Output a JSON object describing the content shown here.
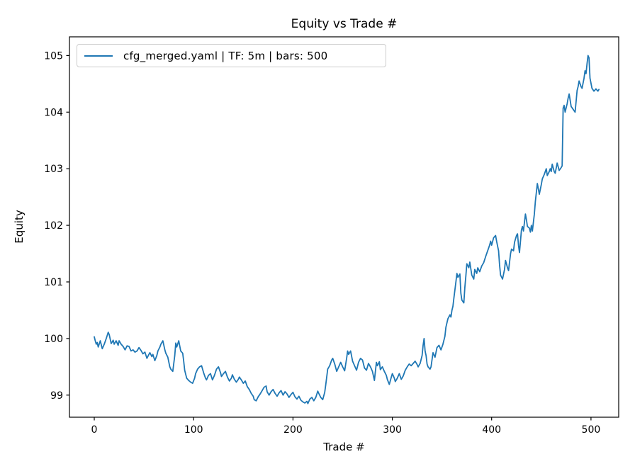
{
  "title": "Equity vs Trade #",
  "legend": {
    "label": "cfg_merged.yaml | TF: 5m | bars: 500",
    "position": "upper left"
  },
  "chart_data": {
    "type": "line",
    "title": "Equity vs Trade #",
    "xlabel": "Trade #",
    "ylabel": "Equity",
    "grid": false,
    "legend_position": "upper left",
    "xticks": [
      0,
      100,
      200,
      300,
      400,
      500
    ],
    "yticks": [
      99,
      100,
      101,
      102,
      103,
      104,
      105
    ],
    "xlim": [
      -25,
      527.9
    ],
    "ylim": [
      98.61,
      105.33
    ],
    "series": [
      {
        "name": "cfg_merged.yaml | TF: 5m | bars: 500",
        "color": "#1f77b4",
        "points": [
          [
            0,
            100.03
          ],
          [
            1,
            99.96
          ],
          [
            2,
            99.9
          ],
          [
            3,
            99.93
          ],
          [
            4,
            99.85
          ],
          [
            6,
            99.96
          ],
          [
            7,
            99.89
          ],
          [
            8,
            99.82
          ],
          [
            10,
            99.9
          ],
          [
            12,
            100.0
          ],
          [
            14,
            100.11
          ],
          [
            15,
            100.07
          ],
          [
            17,
            99.91
          ],
          [
            19,
            99.97
          ],
          [
            20,
            99.9
          ],
          [
            22,
            99.96
          ],
          [
            24,
            99.88
          ],
          [
            25,
            99.96
          ],
          [
            27,
            99.9
          ],
          [
            29,
            99.86
          ],
          [
            31,
            99.8
          ],
          [
            33,
            99.87
          ],
          [
            35,
            99.86
          ],
          [
            37,
            99.78
          ],
          [
            39,
            99.8
          ],
          [
            41,
            99.76
          ],
          [
            43,
            99.78
          ],
          [
            45,
            99.84
          ],
          [
            47,
            99.79
          ],
          [
            49,
            99.73
          ],
          [
            51,
            99.76
          ],
          [
            53,
            99.65
          ],
          [
            55,
            99.72
          ],
          [
            56,
            99.75
          ],
          [
            58,
            99.68
          ],
          [
            59,
            99.72
          ],
          [
            61,
            99.61
          ],
          [
            63,
            99.7
          ],
          [
            64,
            99.78
          ],
          [
            66,
            99.85
          ],
          [
            67,
            99.9
          ],
          [
            69,
            99.96
          ],
          [
            71,
            99.8
          ],
          [
            72,
            99.74
          ],
          [
            74,
            99.67
          ],
          [
            76,
            99.5
          ],
          [
            77,
            99.46
          ],
          [
            79,
            99.42
          ],
          [
            81,
            99.7
          ],
          [
            82,
            99.92
          ],
          [
            83,
            99.85
          ],
          [
            85,
            99.96
          ],
          [
            87,
            99.78
          ],
          [
            89,
            99.74
          ],
          [
            90,
            99.6
          ],
          [
            91,
            99.44
          ],
          [
            93,
            99.3
          ],
          [
            95,
            99.26
          ],
          [
            97,
            99.23
          ],
          [
            99,
            99.21
          ],
          [
            101,
            99.3
          ],
          [
            102,
            99.38
          ],
          [
            104,
            99.46
          ],
          [
            106,
            99.5
          ],
          [
            108,
            99.52
          ],
          [
            110,
            99.4
          ],
          [
            112,
            99.3
          ],
          [
            113,
            99.27
          ],
          [
            115,
            99.35
          ],
          [
            117,
            99.38
          ],
          [
            119,
            99.27
          ],
          [
            121,
            99.35
          ],
          [
            123,
            99.46
          ],
          [
            125,
            99.5
          ],
          [
            127,
            99.4
          ],
          [
            128,
            99.33
          ],
          [
            130,
            99.38
          ],
          [
            132,
            99.42
          ],
          [
            134,
            99.32
          ],
          [
            136,
            99.25
          ],
          [
            138,
            99.3
          ],
          [
            139,
            99.36
          ],
          [
            141,
            99.28
          ],
          [
            143,
            99.23
          ],
          [
            145,
            99.28
          ],
          [
            146,
            99.32
          ],
          [
            148,
            99.27
          ],
          [
            150,
            99.21
          ],
          [
            152,
            99.25
          ],
          [
            154,
            99.15
          ],
          [
            156,
            99.1
          ],
          [
            158,
            99.03
          ],
          [
            160,
            98.98
          ],
          [
            161,
            98.92
          ],
          [
            163,
            98.9
          ],
          [
            165,
            98.97
          ],
          [
            167,
            99.02
          ],
          [
            169,
            99.08
          ],
          [
            171,
            99.14
          ],
          [
            173,
            99.16
          ],
          [
            174,
            99.06
          ],
          [
            176,
            99.0
          ],
          [
            178,
            99.06
          ],
          [
            180,
            99.1
          ],
          [
            182,
            99.03
          ],
          [
            184,
            98.98
          ],
          [
            186,
            99.04
          ],
          [
            188,
            99.08
          ],
          [
            190,
            99.0
          ],
          [
            192,
            99.06
          ],
          [
            194,
            99.02
          ],
          [
            196,
            98.96
          ],
          [
            198,
            99.01
          ],
          [
            200,
            99.05
          ],
          [
            202,
            98.97
          ],
          [
            204,
            98.93
          ],
          [
            206,
            98.98
          ],
          [
            208,
            98.91
          ],
          [
            210,
            98.88
          ],
          [
            212,
            98.86
          ],
          [
            214,
            98.89
          ],
          [
            215,
            98.85
          ],
          [
            217,
            98.93
          ],
          [
            219,
            98.96
          ],
          [
            221,
            98.9
          ],
          [
            223,
            98.96
          ],
          [
            225,
            99.07
          ],
          [
            226,
            99.03
          ],
          [
            228,
            98.96
          ],
          [
            230,
            98.92
          ],
          [
            232,
            99.05
          ],
          [
            233,
            99.18
          ],
          [
            234,
            99.32
          ],
          [
            235,
            99.46
          ],
          [
            237,
            99.52
          ],
          [
            239,
            99.62
          ],
          [
            240,
            99.65
          ],
          [
            242,
            99.55
          ],
          [
            244,
            99.42
          ],
          [
            246,
            99.5
          ],
          [
            248,
            99.58
          ],
          [
            250,
            99.5
          ],
          [
            252,
            99.43
          ],
          [
            254,
            99.65
          ],
          [
            255,
            99.78
          ],
          [
            256,
            99.72
          ],
          [
            258,
            99.78
          ],
          [
            260,
            99.6
          ],
          [
            262,
            99.52
          ],
          [
            264,
            99.44
          ],
          [
            266,
            99.58
          ],
          [
            268,
            99.65
          ],
          [
            270,
            99.62
          ],
          [
            272,
            99.48
          ],
          [
            274,
            99.44
          ],
          [
            276,
            99.56
          ],
          [
            278,
            99.5
          ],
          [
            280,
            99.42
          ],
          [
            282,
            99.26
          ],
          [
            284,
            99.58
          ],
          [
            285,
            99.52
          ],
          [
            287,
            99.59
          ],
          [
            288,
            99.45
          ],
          [
            290,
            99.5
          ],
          [
            292,
            99.42
          ],
          [
            294,
            99.35
          ],
          [
            295,
            99.28
          ],
          [
            297,
            99.19
          ],
          [
            299,
            99.32
          ],
          [
            300,
            99.38
          ],
          [
            302,
            99.3
          ],
          [
            303,
            99.24
          ],
          [
            305,
            99.3
          ],
          [
            307,
            99.38
          ],
          [
            309,
            99.28
          ],
          [
            311,
            99.34
          ],
          [
            313,
            99.44
          ],
          [
            315,
            99.5
          ],
          [
            317,
            99.55
          ],
          [
            319,
            99.52
          ],
          [
            321,
            99.56
          ],
          [
            323,
            99.6
          ],
          [
            325,
            99.54
          ],
          [
            326,
            99.5
          ],
          [
            328,
            99.56
          ],
          [
            330,
            99.7
          ],
          [
            331,
            99.88
          ],
          [
            332,
            100.0
          ],
          [
            333,
            99.78
          ],
          [
            334,
            99.7
          ],
          [
            335,
            99.55
          ],
          [
            336,
            99.5
          ],
          [
            338,
            99.46
          ],
          [
            339,
            99.5
          ],
          [
            341,
            99.75
          ],
          [
            343,
            99.67
          ],
          [
            345,
            99.84
          ],
          [
            347,
            99.88
          ],
          [
            349,
            99.8
          ],
          [
            351,
            99.9
          ],
          [
            353,
            100.04
          ],
          [
            354,
            100.2
          ],
          [
            356,
            100.35
          ],
          [
            358,
            100.42
          ],
          [
            359,
            100.38
          ],
          [
            360,
            100.5
          ],
          [
            361,
            100.57
          ],
          [
            362,
            100.72
          ],
          [
            364,
            101.0
          ],
          [
            365,
            101.15
          ],
          [
            366,
            101.08
          ],
          [
            368,
            101.14
          ],
          [
            369,
            100.8
          ],
          [
            370,
            100.68
          ],
          [
            372,
            100.63
          ],
          [
            373,
            100.9
          ],
          [
            374,
            101.1
          ],
          [
            375,
            101.32
          ],
          [
            377,
            101.25
          ],
          [
            378,
            101.35
          ],
          [
            380,
            101.12
          ],
          [
            382,
            101.05
          ],
          [
            383,
            101.22
          ],
          [
            385,
            101.15
          ],
          [
            386,
            101.25
          ],
          [
            388,
            101.18
          ],
          [
            390,
            101.28
          ],
          [
            392,
            101.34
          ],
          [
            394,
            101.45
          ],
          [
            396,
            101.55
          ],
          [
            398,
            101.65
          ],
          [
            399,
            101.72
          ],
          [
            400,
            101.65
          ],
          [
            402,
            101.78
          ],
          [
            404,
            101.82
          ],
          [
            405,
            101.72
          ],
          [
            407,
            101.55
          ],
          [
            408,
            101.3
          ],
          [
            409,
            101.12
          ],
          [
            411,
            101.05
          ],
          [
            413,
            101.22
          ],
          [
            414,
            101.38
          ],
          [
            416,
            101.25
          ],
          [
            417,
            101.2
          ],
          [
            419,
            101.5
          ],
          [
            420,
            101.58
          ],
          [
            422,
            101.55
          ],
          [
            423,
            101.7
          ],
          [
            425,
            101.82
          ],
          [
            426,
            101.85
          ],
          [
            427,
            101.65
          ],
          [
            428,
            101.52
          ],
          [
            430,
            101.92
          ],
          [
            431,
            101.98
          ],
          [
            432,
            101.9
          ],
          [
            434,
            102.2
          ],
          [
            435,
            102.1
          ],
          [
            436,
            101.98
          ],
          [
            438,
            101.95
          ],
          [
            439,
            101.88
          ],
          [
            440,
            102.0
          ],
          [
            441,
            101.9
          ],
          [
            443,
            102.2
          ],
          [
            444,
            102.42
          ],
          [
            446,
            102.74
          ],
          [
            448,
            102.55
          ],
          [
            450,
            102.72
          ],
          [
            451,
            102.82
          ],
          [
            453,
            102.9
          ],
          [
            455,
            103.0
          ],
          [
            456,
            102.88
          ],
          [
            458,
            102.95
          ],
          [
            459,
            103.0
          ],
          [
            460,
            102.95
          ],
          [
            461,
            103.08
          ],
          [
            463,
            102.95
          ],
          [
            464,
            102.92
          ],
          [
            466,
            103.1
          ],
          [
            468,
            102.97
          ],
          [
            470,
            103.02
          ],
          [
            471,
            103.05
          ],
          [
            472,
            104.07
          ],
          [
            473,
            104.12
          ],
          [
            474,
            104.0
          ],
          [
            476,
            104.15
          ],
          [
            477,
            104.25
          ],
          [
            478,
            104.32
          ],
          [
            480,
            104.1
          ],
          [
            482,
            104.05
          ],
          [
            484,
            104.0
          ],
          [
            486,
            104.38
          ],
          [
            487,
            104.45
          ],
          [
            488,
            104.55
          ],
          [
            490,
            104.45
          ],
          [
            491,
            104.42
          ],
          [
            493,
            104.6
          ],
          [
            494,
            104.73
          ],
          [
            495,
            104.68
          ],
          [
            496,
            104.85
          ],
          [
            497,
            105.0
          ],
          [
            498,
            104.96
          ],
          [
            499,
            104.6
          ],
          [
            501,
            104.42
          ],
          [
            503,
            104.37
          ],
          [
            505,
            104.41
          ],
          [
            507,
            104.37
          ],
          [
            508,
            104.4
          ]
        ]
      }
    ]
  }
}
